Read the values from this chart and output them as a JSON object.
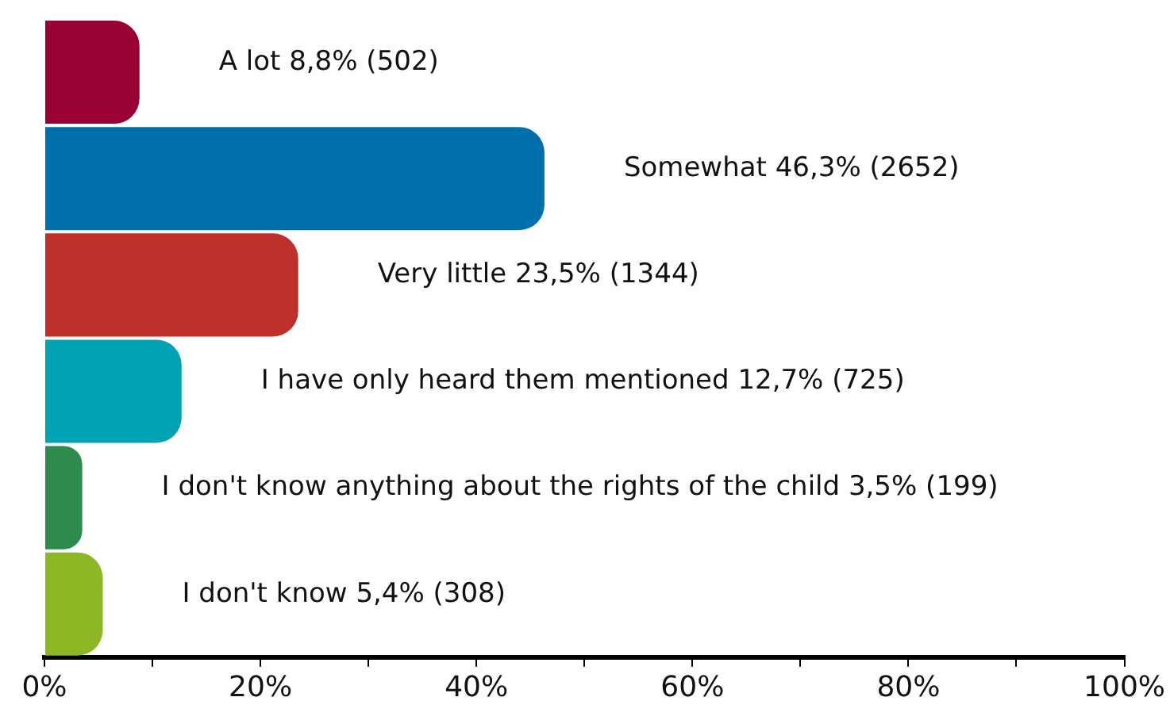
{
  "chart_data": {
    "type": "bar",
    "orientation": "horizontal",
    "categories": [
      "A lot",
      "Somewhat",
      "Very little",
      "I have only heard them mentioned",
      "I don't know anything about the rights of the child",
      "I don't know"
    ],
    "values": [
      8.8,
      46.3,
      23.5,
      12.7,
      3.5,
      5.4
    ],
    "value_labels": [
      "8,8% (502)",
      "46,3% (2652)",
      "23,5% (1344)",
      "12,7% (725)",
      "3,5% (199)",
      "5,4% (308)"
    ],
    "colors": [
      "#990033",
      "#0070ad",
      "#c0302a",
      "#00a3b4",
      "#2e8b4e",
      "#8db823"
    ],
    "xlim": [
      0,
      100
    ],
    "xticks": [
      {
        "value": 0,
        "label": "0%"
      },
      {
        "value": 10,
        "label": null
      },
      {
        "value": 20,
        "label": "20%"
      },
      {
        "value": 30,
        "label": null
      },
      {
        "value": 40,
        "label": "40%"
      },
      {
        "value": 50,
        "label": null
      },
      {
        "value": 60,
        "label": "60%"
      },
      {
        "value": 70,
        "label": null
      },
      {
        "value": 80,
        "label": "80%"
      },
      {
        "value": 90,
        "label": null
      },
      {
        "value": 100,
        "label": "100%"
      }
    ],
    "grid": false,
    "legend": false
  }
}
